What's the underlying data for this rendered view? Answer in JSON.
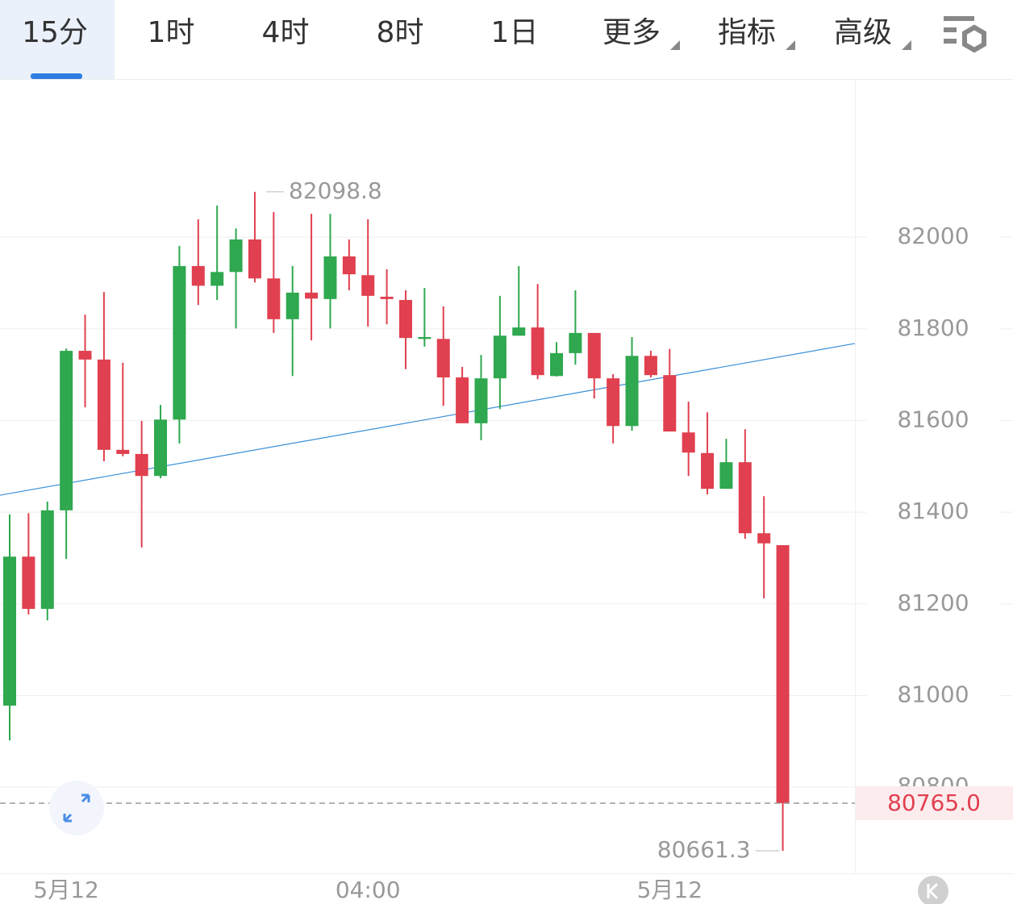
{
  "toolbar": {
    "tabs": [
      "15分",
      "1时",
      "4时",
      "8时",
      "1日",
      "更多",
      "指标",
      "高级"
    ],
    "active_tab": 0,
    "dropdown_tabs": [
      5,
      6,
      7
    ]
  },
  "chart_data": {
    "type": "candlestick",
    "up_color": "#2fa84f",
    "down_color": "#e0404f",
    "categories": [
      null,
      null,
      null,
      "5月12",
      null,
      null,
      null,
      null,
      null,
      null,
      null,
      null,
      null,
      null,
      null,
      null,
      null,
      null,
      null,
      "04:00",
      null,
      null,
      null,
      null,
      null,
      null,
      null,
      null,
      null,
      null,
      null,
      null,
      null,
      null,
      null,
      "5月12",
      null,
      null,
      null,
      null,
      null,
      null
    ],
    "ohlc": [
      [
        80978,
        81395,
        80902,
        81303
      ],
      [
        81303,
        81398,
        81177,
        81189
      ],
      [
        81189,
        81423,
        81164,
        81404
      ],
      [
        81404,
        81757,
        81298,
        81752
      ],
      [
        81752,
        81831,
        81629,
        81733
      ],
      [
        81733,
        81880,
        81511,
        81536
      ],
      [
        81536,
        81726,
        81522,
        81527
      ],
      [
        81527,
        81599,
        81323,
        81479
      ],
      [
        81479,
        81634,
        81474,
        81602
      ],
      [
        81602,
        81981,
        81550,
        81937
      ],
      [
        81937,
        82039,
        81852,
        81894
      ],
      [
        81894,
        82069,
        81863,
        81924
      ],
      [
        81924,
        82019,
        81801,
        81995
      ],
      [
        81995,
        82098.8,
        81901,
        81910
      ],
      [
        81910,
        82055,
        81791,
        81821
      ],
      [
        81821,
        81937,
        81697,
        81879
      ],
      [
        81879,
        82051,
        81775,
        81866
      ],
      [
        81865,
        82051,
        81801,
        81958
      ],
      [
        81958,
        81995,
        81884,
        81919
      ],
      [
        81917,
        82039,
        81805,
        81872
      ],
      [
        81870,
        81930,
        81810,
        81865
      ],
      [
        81863,
        81884,
        81712,
        81780
      ],
      [
        81778,
        81889,
        81761,
        81782
      ],
      [
        81778,
        81849,
        81632,
        81694
      ],
      [
        81694,
        81717,
        81594,
        81594
      ],
      [
        81594,
        81743,
        81557,
        81692
      ],
      [
        81692,
        81872,
        81625,
        81785
      ],
      [
        81785,
        81937,
        81785,
        81803
      ],
      [
        81803,
        81898,
        81690,
        81699
      ],
      [
        81697,
        81771,
        81696,
        81747
      ],
      [
        81747,
        81884,
        81722,
        81791
      ],
      [
        81791,
        81791,
        81648,
        81692
      ],
      [
        81692,
        81701,
        81550,
        81588
      ],
      [
        81588,
        81782,
        81578,
        81741
      ],
      [
        81741,
        81752,
        81694,
        81699
      ],
      [
        81699,
        81756,
        81576,
        81576
      ],
      [
        81574,
        81641,
        81479,
        81530
      ],
      [
        81529,
        81618,
        81439,
        81451
      ],
      [
        81451,
        81560,
        81451,
        81509
      ],
      [
        81509,
        81581,
        81342,
        81354
      ],
      [
        81354,
        81435,
        81212,
        81332
      ],
      [
        81328,
        81328,
        80661.3,
        80765.0
      ]
    ],
    "ylim": [
      80612,
      82345
    ],
    "yticks": [
      80800,
      81000,
      81200,
      81400,
      81600,
      81800,
      82000
    ],
    "grid": true,
    "high_label": {
      "value": 82098.8,
      "label": "82098.8"
    },
    "low_label": {
      "value": 80661.3,
      "label": "80661.3"
    },
    "last_price": {
      "value": 80765.0,
      "label": "80765.0"
    },
    "trend_line": [
      81437,
      81768
    ]
  }
}
